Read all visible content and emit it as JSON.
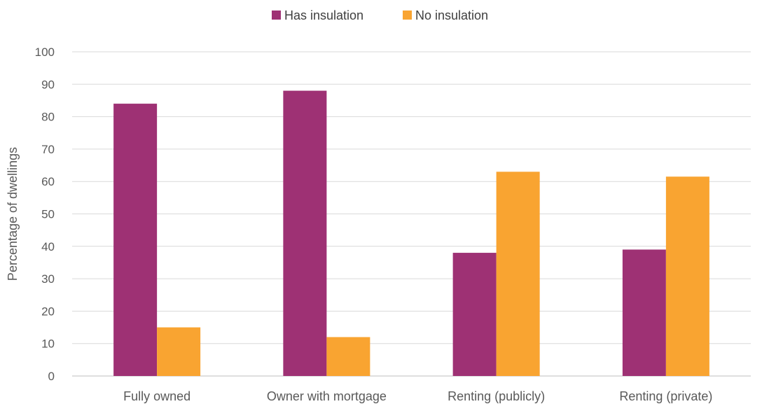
{
  "chart_data": {
    "type": "bar",
    "categories": [
      "Fully owned",
      "Owner with mortgage",
      "Renting (publicly)",
      "Renting (private)"
    ],
    "series": [
      {
        "name": "Has insulation",
        "values": [
          84,
          88,
          38,
          39
        ],
        "color": "#9E3174"
      },
      {
        "name": "No insulation",
        "values": [
          15,
          12,
          63,
          61.5
        ],
        "color": "#F9A431"
      }
    ],
    "title": "",
    "xlabel": "",
    "ylabel": "Percentage of dwellings",
    "ylim": [
      0,
      100
    ],
    "yticks": [
      0,
      10,
      20,
      30,
      40,
      50,
      60,
      70,
      80,
      90,
      100
    ],
    "grid": true,
    "legend_position": "top"
  }
}
